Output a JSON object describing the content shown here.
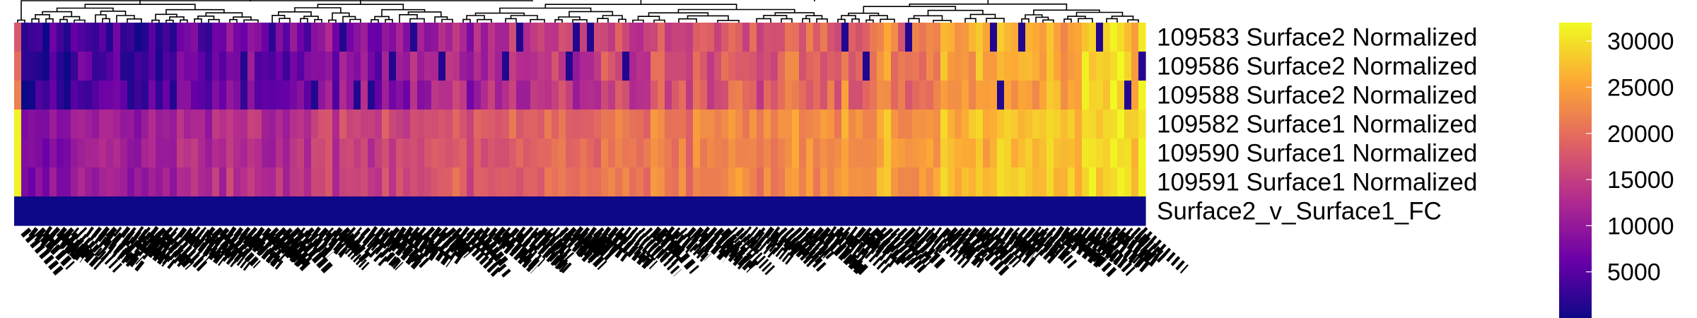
{
  "chart_data": {
    "type": "heatmap",
    "title": "",
    "xlabel": "",
    "ylabel": "",
    "dendrogram": "columns",
    "row_labels": [
      "109583 Surface2 Normalized",
      "109586 Surface2 Normalized",
      "109588 Surface2 Normalized",
      "109582 Surface1 Normalized",
      "109590 Surface1 Normalized",
      "109591 Surface1 Normalized",
      "Surface2_v_Surface1_FC"
    ],
    "colorbar": {
      "ticks": [
        30000,
        25000,
        20000,
        15000,
        10000,
        5000
      ],
      "tick_labels": [
        "30000",
        "25000",
        "20000",
        "15000",
        "10000",
        "5000"
      ],
      "range": [
        0,
        32000
      ],
      "colormap": "plasma",
      "colors": [
        "#0d0887",
        "#6a00a8",
        "#b12a90",
        "#e16462",
        "#fca636",
        "#f0f921"
      ]
    },
    "column_count": 160,
    "column_label_note": "≈160 gene-name labels rotated ~45°, densely overlapping and illegible",
    "column_value_profile": {
      "surface1_rows_start": 8000,
      "surface1_rows_end": 30000,
      "surface2_rows_start": 2500,
      "surface2_rows_end": 29000,
      "fc_row_value": 0
    }
  }
}
